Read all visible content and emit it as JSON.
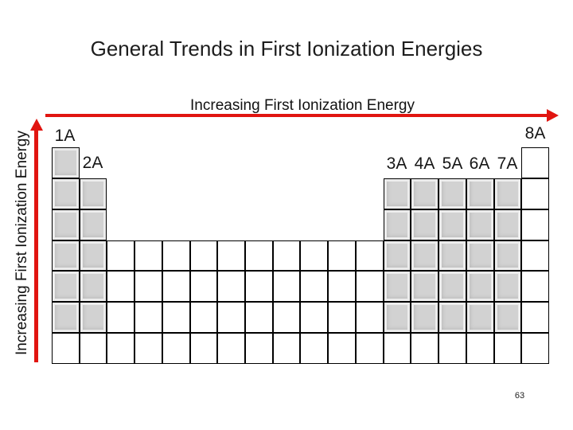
{
  "slide": {
    "title": "General Trends in First Ionization Energies",
    "page_number": "63",
    "background_color": "#ffffff"
  },
  "trend_arrows": {
    "horizontal_label": "Increasing First Ionization Energy",
    "vertical_label": "Increasing First Ionization Energy",
    "arrow_color": "#e11510"
  },
  "table": {
    "group_labels": [
      "1A",
      "2A",
      "3A",
      "4A",
      "5A",
      "6A",
      "7A",
      "8A"
    ],
    "columns": 18,
    "period_rows": 7,
    "shaded_cell_color": "#d2d2d2",
    "unshaded_cell_color": "#ffffff",
    "grid_border_color": "#000000",
    "grid_rows": [
      "G................W",
      "GG..........GGGGGW",
      "GG..........GGGGGW",
      "GGWWWWWWWWWWGGGGGW",
      "GGWWWWWWWWWWGGGGGW",
      "GGWWWWWWWWWWGGGGGW",
      "WWWWWWWWWWWWWWWWWW"
    ],
    "grid_encoding": {
      "G": "gray-shaded cell",
      "W": "white cell",
      ".": "no cell"
    }
  }
}
